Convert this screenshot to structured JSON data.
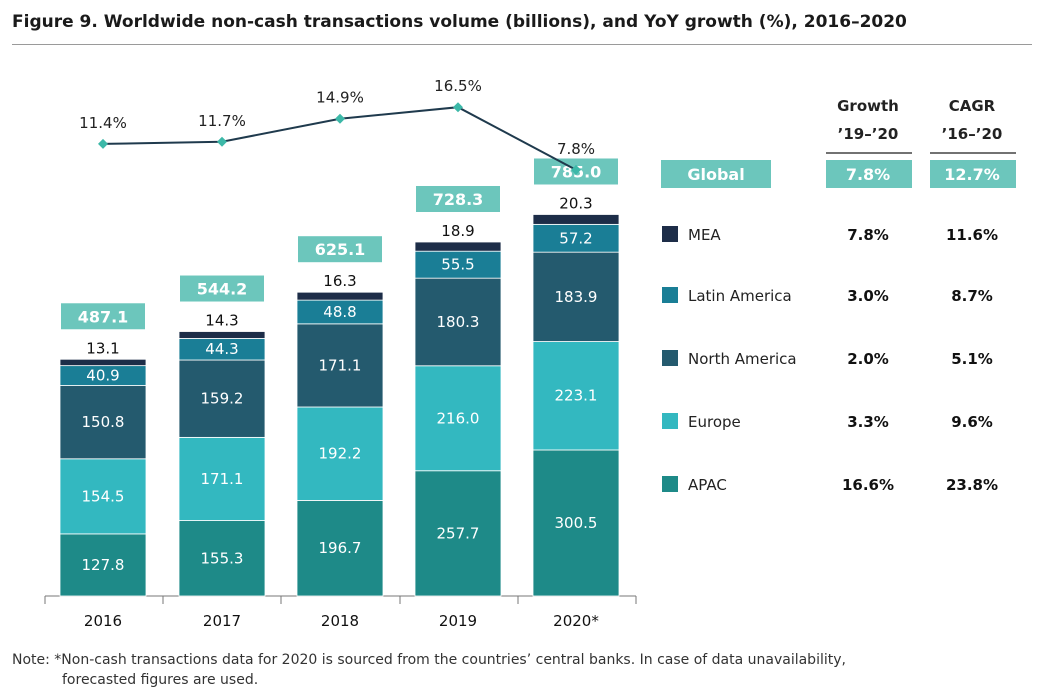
{
  "title": "Figure 9. Worldwide non-cash transactions volume (billions), and YoY growth (%), 2016–2020",
  "note_line1": "Note: *Non-cash transactions data for 2020 is sourced from the countries’ central banks. In case of data unavailability,",
  "note_line2": "forecasted figures are used.",
  "colors": {
    "APAC": "#1e8a88",
    "Europe": "#33b8c0",
    "North America": "#245a6e",
    "Latin America": "#1a7e96",
    "MEA": "#1d2d48",
    "total_box": "#6cc6bc",
    "growth_line": "#1f3a4d",
    "growth_marker": "#3cb8a8"
  },
  "chart_data": {
    "type": "bar",
    "stacked": true,
    "categories": [
      "2016",
      "2017",
      "2018",
      "2019",
      "2020*"
    ],
    "series": [
      {
        "name": "APAC",
        "values": [
          127.8,
          155.3,
          196.7,
          257.7,
          300.5
        ]
      },
      {
        "name": "Europe",
        "values": [
          154.5,
          171.1,
          192.2,
          216.0,
          223.1
        ]
      },
      {
        "name": "North America",
        "values": [
          150.8,
          159.2,
          171.1,
          180.3,
          183.9
        ]
      },
      {
        "name": "Latin America",
        "values": [
          40.9,
          44.3,
          48.8,
          55.5,
          57.2
        ]
      },
      {
        "name": "MEA",
        "values": [
          13.1,
          14.3,
          16.3,
          18.9,
          20.3
        ]
      }
    ],
    "totals": [
      "487.1",
      "544.2",
      "625.1",
      "728.3",
      "785.0"
    ],
    "value_labels": [
      [
        "127.8",
        "154.5",
        "150.8",
        "40.9",
        "13.1"
      ],
      [
        "155.3",
        "171.1",
        "159.2",
        "44.3",
        "14.3"
      ],
      [
        "196.7",
        "192.2",
        "171.1",
        "48.8",
        "16.3"
      ],
      [
        "257.7",
        "216.0",
        "180.3",
        "55.5",
        "18.9"
      ],
      [
        "300.5",
        "223.1",
        "183.9",
        "57.2",
        "20.3"
      ]
    ],
    "growth_line": {
      "values": [
        11.4,
        11.7,
        14.9,
        16.5,
        7.8
      ],
      "labels": [
        "11.4%",
        "11.7%",
        "14.9%",
        "16.5%",
        "7.8%"
      ]
    },
    "table": {
      "header_growth": [
        "Growth",
        "’19–’20"
      ],
      "header_cagr": [
        "CAGR",
        "’16–’20"
      ],
      "rows": [
        {
          "label": "Global",
          "growth": "7.8%",
          "cagr": "12.7%",
          "highlight": true
        },
        {
          "label": "MEA",
          "growth": "7.8%",
          "cagr": "11.6%"
        },
        {
          "label": "Latin America",
          "growth": "3.0%",
          "cagr": "8.7%"
        },
        {
          "label": "North America",
          "growth": "2.0%",
          "cagr": "5.1%"
        },
        {
          "label": "Europe",
          "growth": "3.3%",
          "cagr": "9.6%"
        },
        {
          "label": "APAC",
          "growth": "16.6%",
          "cagr": "23.8%"
        }
      ]
    },
    "legend_order": [
      "MEA",
      "Latin America",
      "North America",
      "Europe",
      "APAC"
    ]
  }
}
